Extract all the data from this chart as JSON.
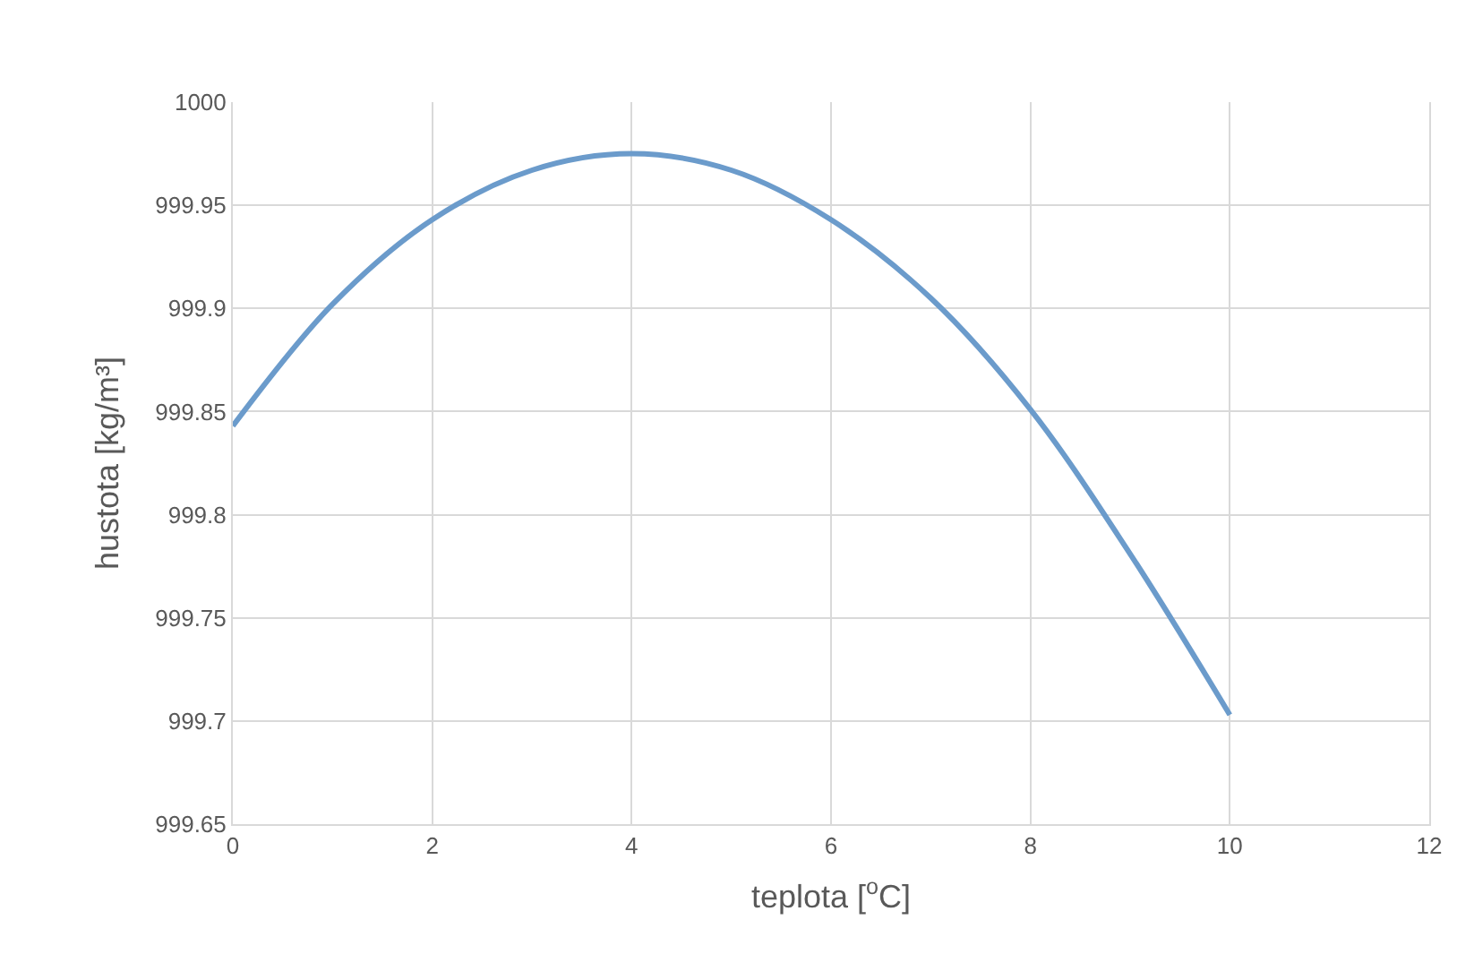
{
  "chart_data": {
    "type": "line",
    "xlabel": "teplota [$^{o}$C]",
    "ylabel": "hustota [kg/m³]",
    "x": [
      0,
      1,
      2,
      3,
      4,
      5,
      6,
      7,
      8,
      9,
      10
    ],
    "series": [
      {
        "color": "#6b9bcb",
        "values": [
          999.843,
          999.902,
          999.943,
          999.967,
          999.975,
          999.967,
          999.943,
          999.905,
          999.851,
          999.781,
          999.703
        ]
      }
    ],
    "xlim": [
      0,
      12
    ],
    "xticks": [
      0,
      2,
      4,
      6,
      8,
      10,
      12
    ],
    "ylim": [
      999.65,
      1000
    ],
    "yticks": [
      999.65,
      999.7,
      999.75,
      999.8,
      999.85,
      999.9,
      999.95,
      1000
    ],
    "grid": true,
    "marker": "none",
    "line_style": "solid"
  }
}
